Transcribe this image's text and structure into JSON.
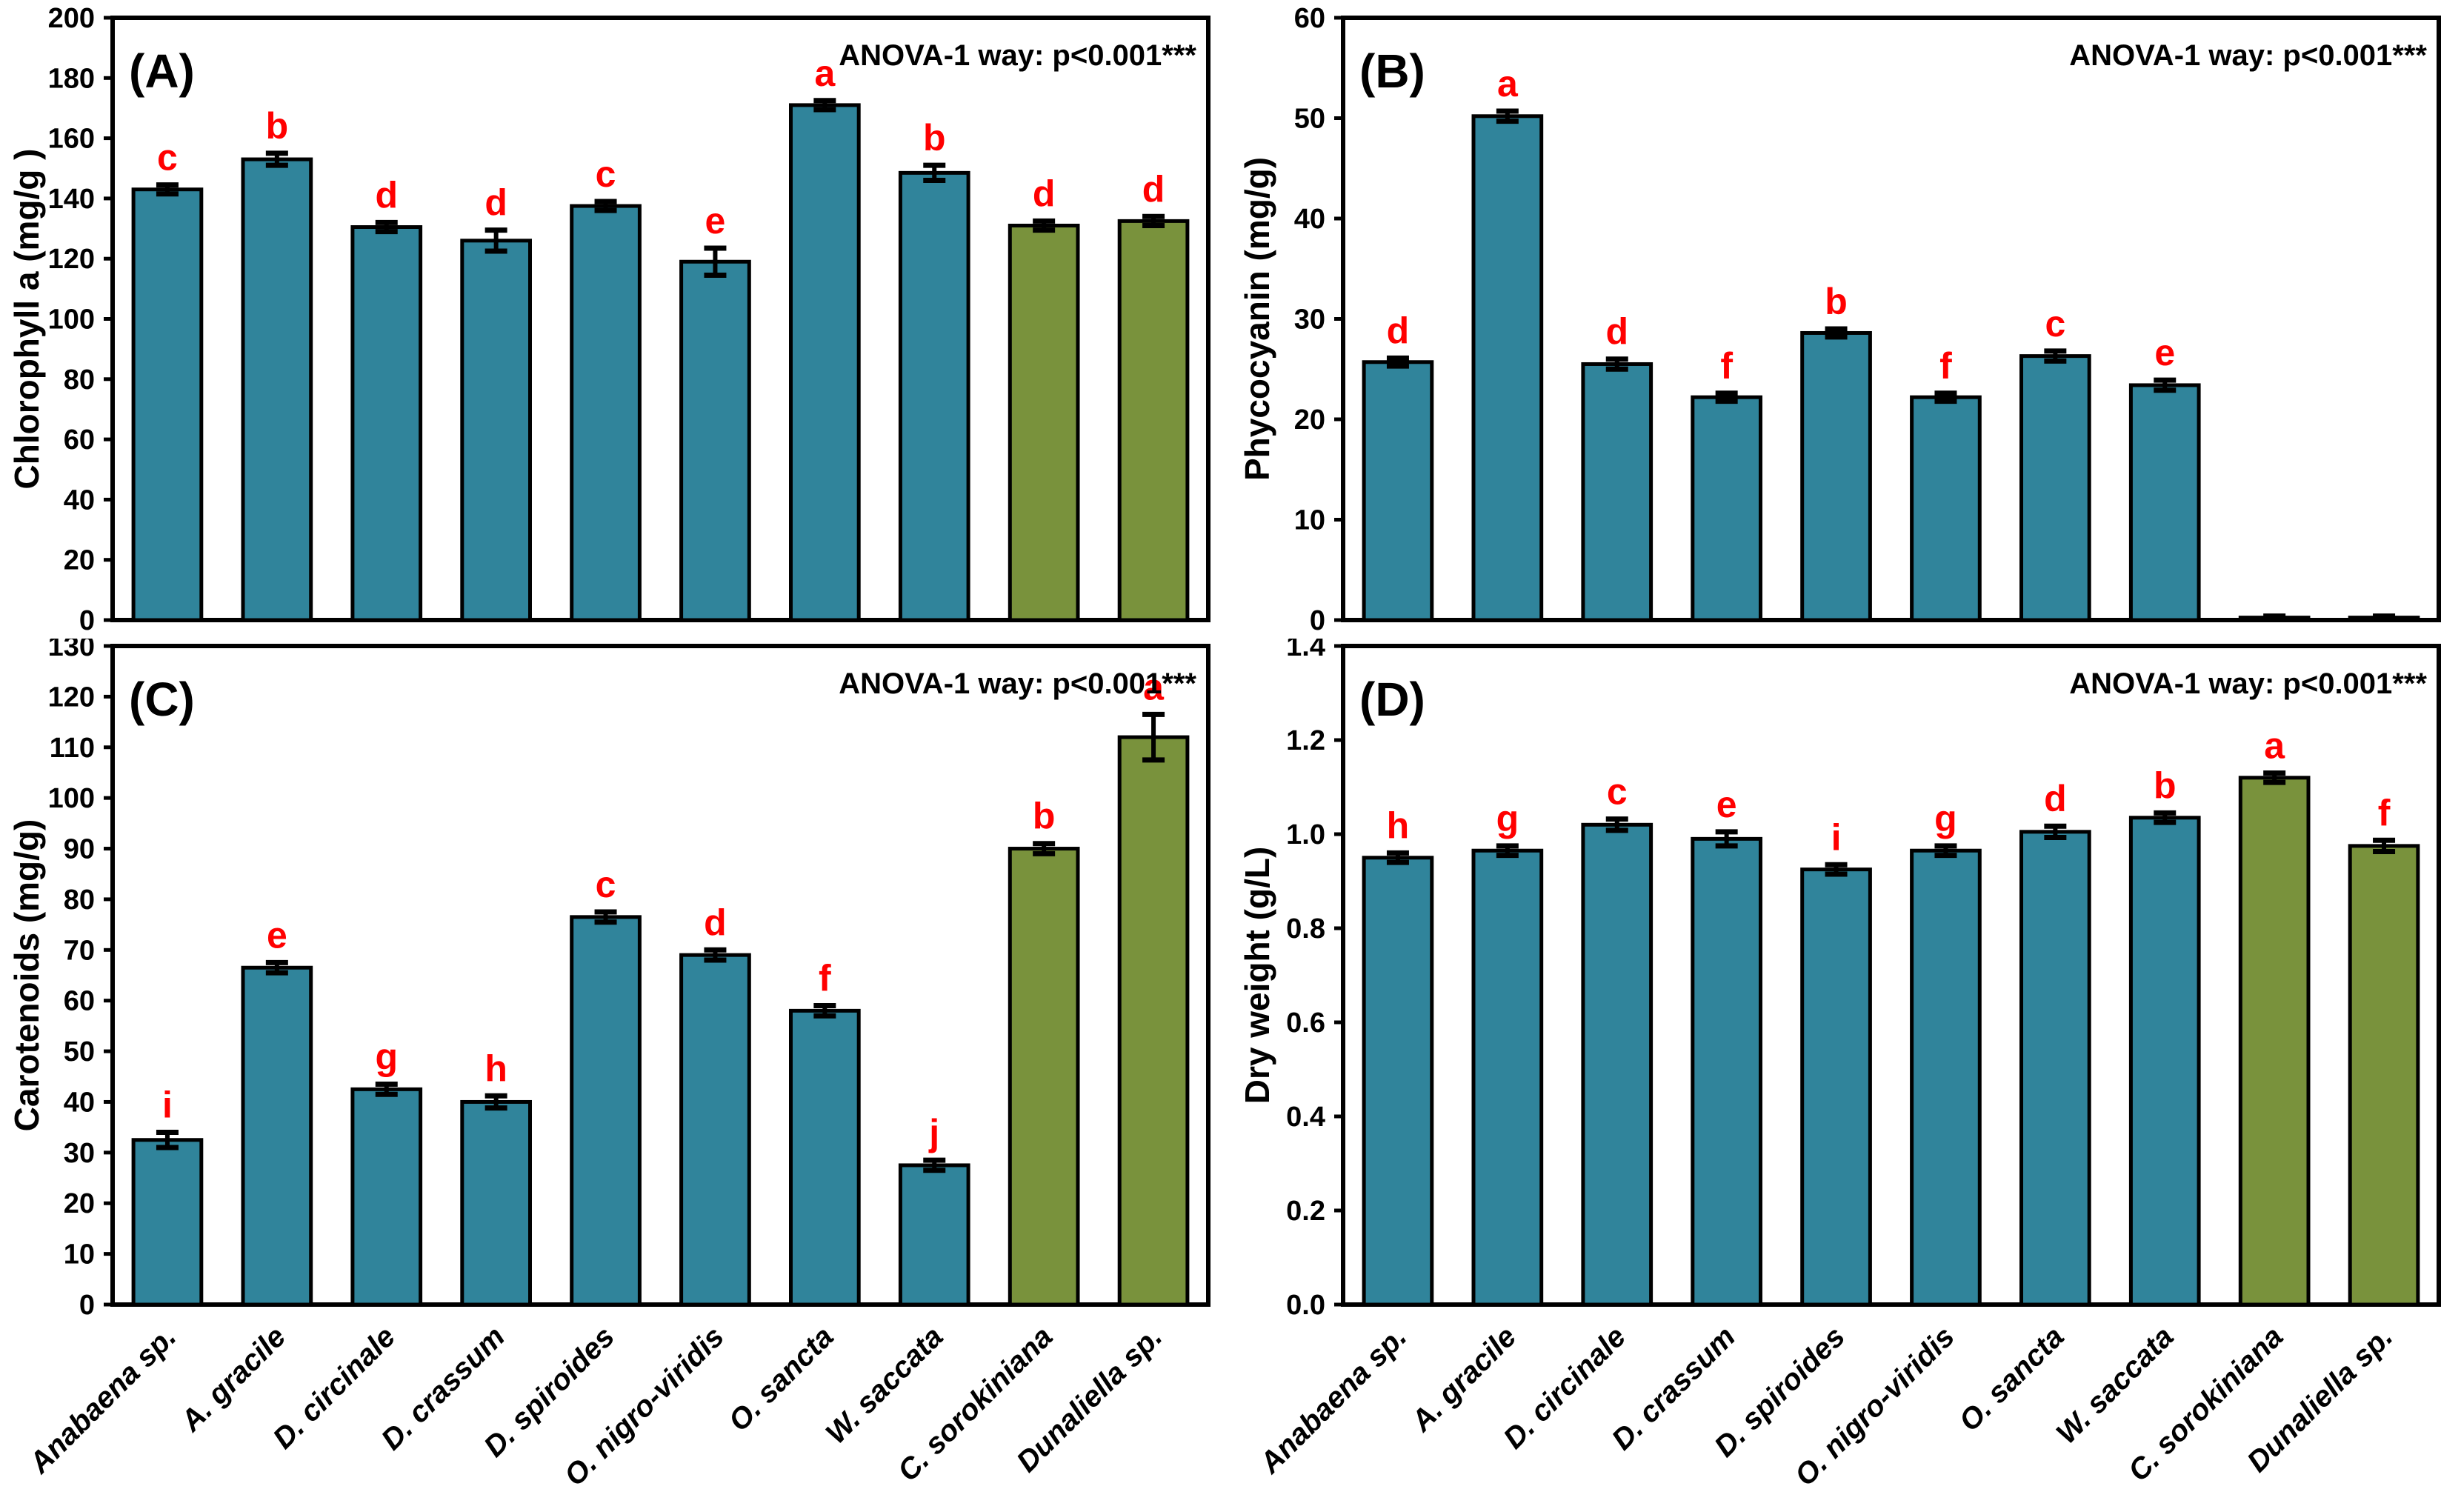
{
  "figure": {
    "anova_label": "ANOVA-1 way: p<0.001***",
    "categories": [
      "Anabaena sp.",
      "A. gracile",
      "D. circinale",
      "D. crassum",
      "D. spiroides",
      "O. nigro-viridis",
      "O. sancta",
      "W. saccata",
      "C. sorokiniana",
      "Dunaliella sp."
    ],
    "colors": {
      "cyanobacteria_bar": "#30849B",
      "chlorophyta_bar": "#79923C",
      "significance_letter": "#FF0000",
      "axis_and_frame": "#000000",
      "background": "#FFFFFF"
    },
    "bar_colors": [
      "#30849B",
      "#30849B",
      "#30849B",
      "#30849B",
      "#30849B",
      "#30849B",
      "#30849B",
      "#30849B",
      "#79923C",
      "#79923C"
    ]
  },
  "chart_data": [
    {
      "type": "bar",
      "panel": "(A)",
      "ylabel": "Chlorophyll a (mg/g )",
      "ylim": [
        0,
        200
      ],
      "yticks": [
        "0",
        "20",
        "40",
        "60",
        "80",
        "100",
        "120",
        "140",
        "160",
        "180",
        "200"
      ],
      "categories": [
        "Anabaena sp.",
        "A. gracile",
        "D. circinale",
        "D. crassum",
        "D. spiroides",
        "O. nigro-viridis",
        "O. sancta",
        "W. saccata",
        "C. sorokiniana",
        "Dunaliella sp."
      ],
      "values": [
        143,
        153,
        130.5,
        126,
        137.5,
        119,
        171,
        148.5,
        131,
        132.5
      ],
      "errors": [
        1.5,
        2,
        1.5,
        3.5,
        1.5,
        4.5,
        1.5,
        2.5,
        1.5,
        1.5
      ],
      "letters": [
        "c",
        "b",
        "d",
        "d",
        "c",
        "e",
        "a",
        "b",
        "d",
        "d"
      ],
      "grid": false,
      "legend": "none",
      "show_xlabels": false
    },
    {
      "type": "bar",
      "panel": "(B)",
      "ylabel": "Phycocyanin (mg/g)",
      "ylim": [
        0,
        60
      ],
      "yticks": [
        "0",
        "10",
        "20",
        "30",
        "40",
        "50",
        "60"
      ],
      "categories": [
        "Anabaena sp.",
        "A. gracile",
        "D. circinale",
        "D. crassum",
        "D. spiroides",
        "O. nigro-viridis",
        "O. sancta",
        "W. saccata",
        "C. sorokiniana",
        "Dunaliella sp."
      ],
      "values": [
        25.7,
        50.2,
        25.5,
        22.2,
        28.6,
        22.2,
        26.3,
        23.4,
        0.25,
        0.25
      ],
      "errors": [
        0.4,
        0.5,
        0.5,
        0.4,
        0.4,
        0.4,
        0.5,
        0.5,
        0.15,
        0.15
      ],
      "letters": [
        "d",
        "a",
        "d",
        "f",
        "b",
        "f",
        "c",
        "e",
        "",
        ""
      ],
      "grid": false,
      "legend": "none",
      "show_xlabels": false
    },
    {
      "type": "bar",
      "panel": "(C)",
      "ylabel": "Carotenoids (mg/g)",
      "ylim": [
        0,
        130
      ],
      "yticks": [
        "0",
        "10",
        "20",
        "30",
        "40",
        "50",
        "60",
        "70",
        "80",
        "90",
        "100",
        "110",
        "120",
        "130"
      ],
      "categories": [
        "Anabaena sp.",
        "A. gracile",
        "D. circinale",
        "D. crassum",
        "D. spiroides",
        "O. nigro-viridis",
        "O. sancta",
        "W. saccata",
        "C. sorokiniana",
        "Dunaliella sp."
      ],
      "values": [
        32.5,
        66.5,
        42.5,
        40,
        76.5,
        69,
        58,
        27.5,
        90,
        112
      ],
      "errors": [
        1.5,
        1,
        1,
        1.2,
        1,
        1,
        1,
        1,
        1,
        4.5
      ],
      "letters": [
        "i",
        "e",
        "g",
        "h",
        "c",
        "d",
        "f",
        "j",
        "b",
        "a"
      ],
      "grid": false,
      "legend": "none",
      "show_xlabels": true
    },
    {
      "type": "bar",
      "panel": "(D)",
      "ylabel": "Dry weight (g/L)",
      "ylim": [
        0,
        1.4
      ],
      "yticks": [
        "0.0",
        "0.2",
        "0.4",
        "0.6",
        "0.8",
        "1.0",
        "1.2",
        "1.4"
      ],
      "categories": [
        "Anabaena sp.",
        "A. gracile",
        "D. circinale",
        "D. crassum",
        "D. spiroides",
        "O. nigro-viridis",
        "O. sancta",
        "W. saccata",
        "C. sorokiniana",
        "Dunaliella sp."
      ],
      "values": [
        0.95,
        0.965,
        1.02,
        0.99,
        0.925,
        0.965,
        1.005,
        1.035,
        1.12,
        0.975
      ],
      "errors": [
        0.01,
        0.01,
        0.012,
        0.015,
        0.01,
        0.01,
        0.012,
        0.01,
        0.01,
        0.012
      ],
      "letters": [
        "h",
        "g",
        "c",
        "e",
        "i",
        "g",
        "d",
        "b",
        "a",
        "f"
      ],
      "grid": false,
      "legend": "none",
      "show_xlabels": true
    }
  ]
}
